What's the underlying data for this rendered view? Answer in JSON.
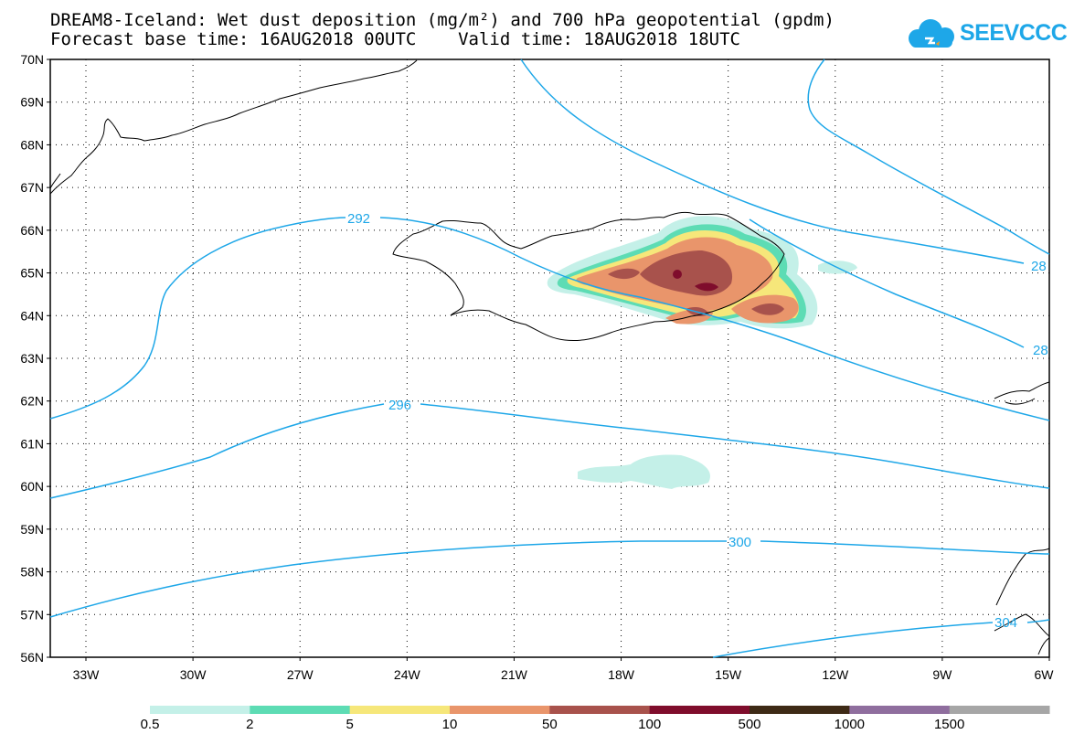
{
  "title": {
    "line1": "DREAM8-Iceland: Wet dust deposition (mg/m²) and 700 hPa geopotential (gpdm)",
    "line2": "Forecast base time: 16AUG2018 00UTC    Valid time: 18AUG2018 18UTC"
  },
  "logo": {
    "text": "SEEVCCC",
    "icon": "cloud-icon",
    "color": "#1ea7e8"
  },
  "map": {
    "lat_labels": [
      "70N",
      "69N",
      "68N",
      "67N",
      "66N",
      "65N",
      "64N",
      "63N",
      "62N",
      "61N",
      "60N",
      "59N",
      "58N",
      "57N",
      "56N"
    ],
    "lon_labels": [
      "33W",
      "30W",
      "27W",
      "24W",
      "21W",
      "18W",
      "15W",
      "12W",
      "9W",
      "6W"
    ],
    "contour_color": "#1ea7e8",
    "contour_labels": [
      "292",
      "296",
      "300",
      "304",
      "28",
      "28"
    ]
  },
  "colorbar": {
    "labels": [
      "0.5",
      "2",
      "5",
      "10",
      "50",
      "100",
      "500",
      "1000",
      "1500"
    ],
    "colors": [
      "#c4f0e8",
      "#5ddcb4",
      "#f6e77a",
      "#e9956b",
      "#a8524c",
      "#7f0d2c",
      "#3e2a16",
      "#8f6e9e",
      "#a6a6a6"
    ]
  }
}
